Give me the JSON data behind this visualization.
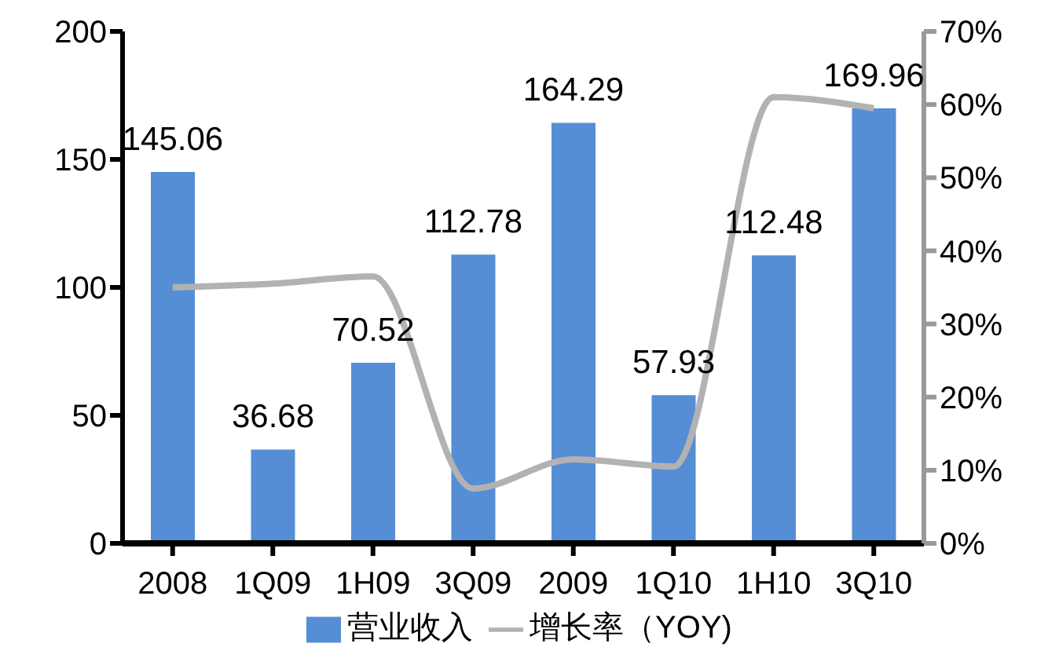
{
  "chart_data": {
    "type": "bar",
    "categories": [
      "2008",
      "1Q09",
      "1H09",
      "3Q09",
      "2009",
      "1Q10",
      "1H10",
      "3Q10"
    ],
    "series": [
      {
        "name": "营业收入",
        "color": "#558ed5",
        "values": [
          145.06,
          36.68,
          70.52,
          112.78,
          164.29,
          57.93,
          112.48,
          169.96
        ],
        "value_labels": [
          "145.06",
          "36.68",
          "70.52",
          "112.78",
          "164.29",
          "57.93",
          "112.48",
          "169.96"
        ]
      },
      {
        "name": "增长率（YOY)",
        "type": "line",
        "axis": "y2",
        "color": "#b2b2b2",
        "values": [
          35,
          35.5,
          36.5,
          7.5,
          11.5,
          10.5,
          61,
          59.5
        ]
      }
    ],
    "ylim": [
      0,
      200
    ],
    "yticks": [
      0,
      50,
      100,
      150,
      200
    ],
    "y2lim": [
      0,
      70
    ],
    "y2ticks": [
      {
        "value": 0,
        "label": "0%"
      },
      {
        "value": 10,
        "label": "10%"
      },
      {
        "value": 20,
        "label": "20%"
      },
      {
        "value": 30,
        "label": "30%"
      },
      {
        "value": 40,
        "label": "40%"
      },
      {
        "value": 50,
        "label": "50%"
      },
      {
        "value": 60,
        "label": "60%"
      },
      {
        "value": 70,
        "label": "70%"
      }
    ],
    "grid": false,
    "legend": "bottom",
    "marker": "none"
  }
}
